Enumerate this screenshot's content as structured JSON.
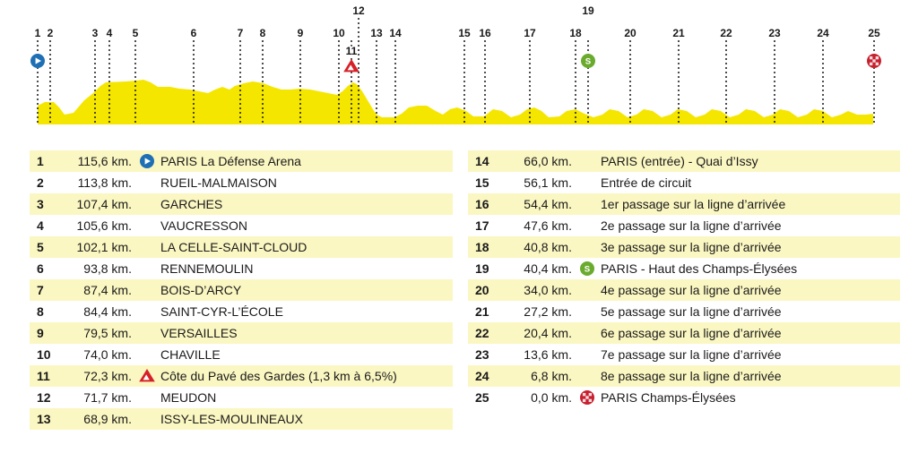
{
  "colors": {
    "profile_fill": "#f5e600",
    "row_highlight": "#fbf7c2",
    "start_blue": "#1f6fb5",
    "sprint_green": "#6aab2e",
    "climb_red": "#d62027",
    "finish_red": "#c8202f"
  },
  "profile": {
    "markers": [
      {
        "n": "1",
        "icon": "start-icon"
      },
      {
        "n": "2",
        "icon": ""
      },
      {
        "n": "3",
        "icon": ""
      },
      {
        "n": "4",
        "icon": ""
      },
      {
        "n": "5",
        "icon": ""
      },
      {
        "n": "6",
        "icon": ""
      },
      {
        "n": "7",
        "icon": ""
      },
      {
        "n": "8",
        "icon": ""
      },
      {
        "n": "9",
        "icon": ""
      },
      {
        "n": "10",
        "icon": ""
      },
      {
        "n": "11",
        "icon": "climb-icon"
      },
      {
        "n": "12",
        "icon": ""
      },
      {
        "n": "13",
        "icon": ""
      },
      {
        "n": "14",
        "icon": ""
      },
      {
        "n": "15",
        "icon": ""
      },
      {
        "n": "16",
        "icon": ""
      },
      {
        "n": "17",
        "icon": ""
      },
      {
        "n": "18",
        "icon": ""
      },
      {
        "n": "19",
        "icon": "sprint-icon"
      },
      {
        "n": "20",
        "icon": ""
      },
      {
        "n": "21",
        "icon": ""
      },
      {
        "n": "22",
        "icon": ""
      },
      {
        "n": "23",
        "icon": ""
      },
      {
        "n": "24",
        "icon": ""
      },
      {
        "n": "25",
        "icon": "finish-icon"
      }
    ]
  },
  "waypoints_left": [
    {
      "num": "1",
      "km": "115,6 km.",
      "icon": "start-icon",
      "name": "PARIS La Défense Arena"
    },
    {
      "num": "2",
      "km": "113,8 km.",
      "icon": "",
      "name": "RUEIL-MALMAISON"
    },
    {
      "num": "3",
      "km": "107,4 km.",
      "icon": "",
      "name": "GARCHES"
    },
    {
      "num": "4",
      "km": "105,6 km.",
      "icon": "",
      "name": "VAUCRESSON"
    },
    {
      "num": "5",
      "km": "102,1 km.",
      "icon": "",
      "name": "LA CELLE-SAINT-CLOUD"
    },
    {
      "num": "6",
      "km": "93,8 km.",
      "icon": "",
      "name": "RENNEMOULIN"
    },
    {
      "num": "7",
      "km": "87,4 km.",
      "icon": "",
      "name": "BOIS-D’ARCY"
    },
    {
      "num": "8",
      "km": "84,4 km.",
      "icon": "",
      "name": "SAINT-CYR-L’ÉCOLE"
    },
    {
      "num": "9",
      "km": "79,5 km.",
      "icon": "",
      "name": "VERSAILLES"
    },
    {
      "num": "10",
      "km": "74,0 km.",
      "icon": "",
      "name": "CHAVILLE"
    },
    {
      "num": "11",
      "km": "72,3 km.",
      "icon": "climb-icon",
      "name": "Côte du Pavé des Gardes (1,3 km à 6,5%)"
    },
    {
      "num": "12",
      "km": "71,7 km.",
      "icon": "",
      "name": "MEUDON"
    },
    {
      "num": "13",
      "km": "68,9 km.",
      "icon": "",
      "name": "ISSY-LES-MOULINEAUX"
    }
  ],
  "waypoints_right": [
    {
      "num": "14",
      "km": "66,0 km.",
      "icon": "",
      "name": "PARIS (entrée) - Quai d’Issy"
    },
    {
      "num": "15",
      "km": "56,1 km.",
      "icon": "",
      "name": "Entrée de circuit"
    },
    {
      "num": "16",
      "km": "54,4 km.",
      "icon": "",
      "name": "1er passage sur la ligne d’arrivée"
    },
    {
      "num": "17",
      "km": "47,6 km.",
      "icon": "",
      "name": "2e passage sur la ligne d’arrivée"
    },
    {
      "num": "18",
      "km": "40,8 km.",
      "icon": "",
      "name": "3e passage sur la ligne d’arrivée"
    },
    {
      "num": "19",
      "km": "40,4 km.",
      "icon": "sprint-icon",
      "name": "PARIS - Haut des Champs-Élysées"
    },
    {
      "num": "20",
      "km": "34,0 km.",
      "icon": "",
      "name": "4e passage sur la ligne d’arrivée"
    },
    {
      "num": "21",
      "km": "27,2 km.",
      "icon": "",
      "name": "5e passage sur la ligne d’arrivée"
    },
    {
      "num": "22",
      "km": "20,4 km.",
      "icon": "",
      "name": "6e passage sur la ligne d’arrivée"
    },
    {
      "num": "23",
      "km": "13,6 km.",
      "icon": "",
      "name": "7e passage sur la ligne d’arrivée"
    },
    {
      "num": "24",
      "km": "6,8 km.",
      "icon": "",
      "name": "8e passage sur la ligne d’arrivée"
    },
    {
      "num": "25",
      "km": "0,0 km.",
      "icon": "finish-icon",
      "name": "PARIS Champs-Élysées"
    }
  ]
}
